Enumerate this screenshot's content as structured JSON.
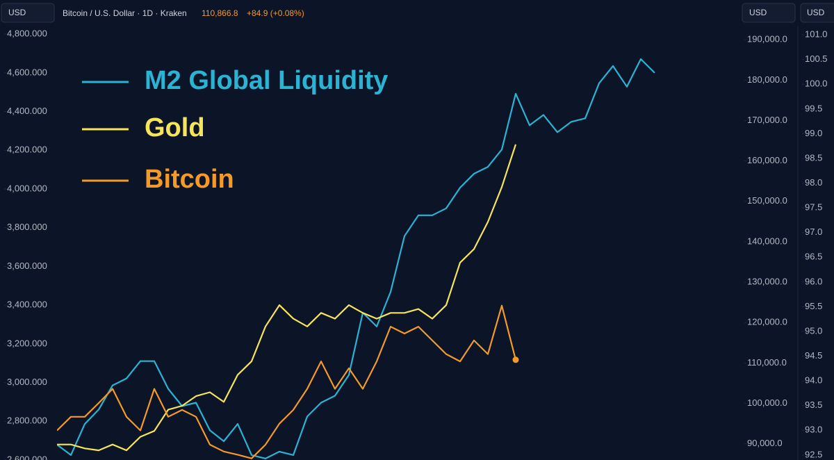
{
  "chart_data": {
    "type": "line",
    "title": "Bitcoin / U.S. Dollar · 1D · Kraken",
    "price": "110,866.8",
    "change": "+84.9 (+0.08%)",
    "currency_labels": [
      "USD",
      "USD",
      "USD"
    ],
    "legend": "upper left",
    "ylim": [
      2600,
      4840
    ],
    "yticks": [
      {
        "value": 2600,
        "label": "2,600.000"
      },
      {
        "value": 2800,
        "label": "2,800.000"
      },
      {
        "value": 3000,
        "label": "3,000.000"
      },
      {
        "value": 3200,
        "label": "3,200.000"
      },
      {
        "value": 3400,
        "label": "3,400.000"
      },
      {
        "value": 3600,
        "label": "3,600.000"
      },
      {
        "value": 3800,
        "label": "3,800.000"
      },
      {
        "value": 4000,
        "label": "4,000.000"
      },
      {
        "value": 4200,
        "label": "4,200.000"
      },
      {
        "value": 4400,
        "label": "4,400.000"
      },
      {
        "value": 4600,
        "label": "4,600.000"
      },
      {
        "value": 4800,
        "label": "4,800.000"
      }
    ],
    "y2lim": [
      86000,
      193300
    ],
    "y2ticks": [
      {
        "value": 90000,
        "label": "90,000.0"
      },
      {
        "value": 100000,
        "label": "100,000.0"
      },
      {
        "value": 110000,
        "label": "110,000.0"
      },
      {
        "value": 120000,
        "label": "120,000.0"
      },
      {
        "value": 130000,
        "label": "130,000.0"
      },
      {
        "value": 140000,
        "label": "140,000.0"
      },
      {
        "value": 150000,
        "label": "150,000.0"
      },
      {
        "value": 160000,
        "label": "160,000.0"
      },
      {
        "value": 170000,
        "label": "170,000.0"
      },
      {
        "value": 180000,
        "label": "180,000.0"
      },
      {
        "value": 190000,
        "label": "190,000.0"
      }
    ],
    "y3lim": [
      92.4,
      101.17
    ],
    "y3ticks": [
      {
        "value": 92.5,
        "label": "92.5"
      },
      {
        "value": 93,
        "label": "93.0"
      },
      {
        "value": 93.5,
        "label": "93.5"
      },
      {
        "value": 94,
        "label": "94.0"
      },
      {
        "value": 94.5,
        "label": "94.5"
      },
      {
        "value": 95,
        "label": "95.0"
      },
      {
        "value": 95.5,
        "label": "95.5"
      },
      {
        "value": 96,
        "label": "96.0"
      },
      {
        "value": 96.5,
        "label": "96.5"
      },
      {
        "value": 97,
        "label": "97.0"
      },
      {
        "value": 97.5,
        "label": "97.5"
      },
      {
        "value": 98,
        "label": "98.0"
      },
      {
        "value": 98.5,
        "label": "98.5"
      },
      {
        "value": 99,
        "label": "99.0"
      },
      {
        "value": 99.5,
        "label": "99.5"
      },
      {
        "value": 100,
        "label": "100.0"
      },
      {
        "value": 100.5,
        "label": "100.5"
      },
      {
        "value": 101,
        "label": "101.0"
      }
    ],
    "series": [
      {
        "name": "M2 Global Liquidity",
        "color": "#2bb3d4",
        "axis": "y3",
        "values": [
          92.71,
          92.5,
          93.13,
          93.42,
          93.91,
          94.05,
          94.4,
          94.4,
          93.84,
          93.49,
          93.56,
          93.0,
          92.78,
          93.13,
          92.5,
          92.43,
          92.57,
          92.5,
          93.28,
          93.56,
          93.7,
          94.12,
          95.38,
          95.1,
          95.8,
          96.93,
          97.35,
          97.35,
          97.49,
          97.91,
          98.19,
          98.33,
          98.68,
          99.81,
          99.17,
          99.38,
          99.03,
          99.24,
          99.31,
          100.02,
          100.37,
          99.95,
          100.51,
          100.23
        ]
      },
      {
        "name": "Gold",
        "color": "#f6e55a",
        "axis": "y",
        "values": [
          2680,
          2680,
          2660,
          2650,
          2680,
          2650,
          2720,
          2750,
          2860,
          2880,
          2930,
          2950,
          2900,
          3040,
          3110,
          3290,
          3400,
          3330,
          3290,
          3360,
          3330,
          3400,
          3360,
          3330,
          3360,
          3360,
          3380,
          3330,
          3400,
          3620,
          3690,
          3830,
          4010,
          4230,
          null,
          null,
          null,
          null,
          null,
          null,
          null,
          null,
          null,
          null
        ]
      },
      {
        "name": "Bitcoin",
        "color": "#f39a28",
        "axis": "y2",
        "values": [
          93300,
          96700,
          96700,
          100100,
          103600,
          96700,
          93300,
          103600,
          96700,
          98400,
          96700,
          89800,
          88100,
          87300,
          86400,
          89800,
          95000,
          98400,
          103600,
          110400,
          103600,
          108700,
          103600,
          110400,
          119000,
          117300,
          119000,
          115600,
          112200,
          110400,
          115600,
          112200,
          124200,
          110800,
          null,
          null,
          null,
          null,
          null,
          null,
          null,
          null,
          null,
          null
        ]
      }
    ]
  }
}
